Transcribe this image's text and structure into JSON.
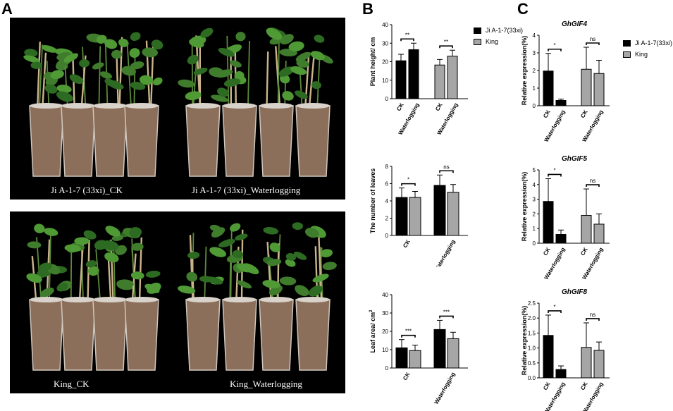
{
  "panels": {
    "a": "A",
    "b": "B",
    "c": "C"
  },
  "photos": {
    "top_left_label": "Ji A-1-7 (33xi)_CK",
    "top_right_label": "Ji A-1-7 (33xi)_Waterlogging",
    "bottom_left_label": "King_CK",
    "bottom_right_label": "King_Waterlogging"
  },
  "legend_b": [
    {
      "label": "Ji A-1-7(33xi)",
      "color": "#000000"
    },
    {
      "label": "King",
      "color": "#a6a6a6"
    }
  ],
  "legend_c": [
    {
      "label": "Ji A-1-7(33xi)",
      "color": "#000000"
    },
    {
      "label": "King",
      "color": "#a6a6a6"
    }
  ],
  "colors": {
    "ji": "#000000",
    "king": "#a6a6a6"
  },
  "chart_data": [
    {
      "id": "b1",
      "type": "bar",
      "title": "",
      "ylabel": "Plant height/ cm",
      "ylim": [
        0,
        40
      ],
      "yticks": [
        0,
        10,
        20,
        30,
        40
      ],
      "categories": [
        "CK",
        "Waterlogging",
        "CK",
        "Waterlogging"
      ],
      "groups": [
        {
          "ji": 20.5,
          "ji_err": 3.5,
          "king": 26.5,
          "king_err": 3.5,
          "sig": "**"
        },
        {
          "ji": 18.2,
          "ji_err": 3.0,
          "king": 23.0,
          "king_err": 3.2,
          "sig": "**"
        }
      ]
    },
    {
      "id": "b2",
      "type": "bar",
      "title": "",
      "ylabel": "The number of leaves",
      "ylim": [
        0,
        8
      ],
      "yticks": [
        0,
        2,
        4,
        6,
        8
      ],
      "categories": [
        "CK",
        "Waterlogging"
      ],
      "groups": [
        {
          "ji": 4.4,
          "ji_err": 1.1,
          "king": 4.4,
          "king_err": 0.7,
          "sig": "*"
        },
        {
          "ji": 5.8,
          "ji_err": 1.2,
          "king": 5.0,
          "king_err": 0.9,
          "sig": "ns"
        }
      ]
    },
    {
      "id": "b3",
      "type": "bar",
      "title": "",
      "ylabel": "Leaf area/ cm",
      "ylabel_sup": "2",
      "ylim": [
        0,
        40
      ],
      "yticks": [
        0,
        10,
        20,
        30,
        40
      ],
      "categories": [
        "CK",
        "Waterlogging"
      ],
      "groups": [
        {
          "ji": 11.0,
          "ji_err": 4.5,
          "king": 9.5,
          "king_err": 3.0,
          "sig": "***"
        },
        {
          "ji": 21.0,
          "ji_err": 5.0,
          "king": 16.0,
          "king_err": 3.5,
          "sig": "***"
        }
      ]
    },
    {
      "id": "c1",
      "type": "bar",
      "title": "GhGIF4",
      "ylabel": "Relative expression(%)",
      "ylim": [
        0,
        4
      ],
      "yticks": [
        0,
        1,
        2,
        3,
        4
      ],
      "categories": [
        "CK",
        "Waterlogging",
        "CK",
        "Waterlogging"
      ],
      "groups": [
        {
          "a": 1.97,
          "a_err": 1.0,
          "b": 0.3,
          "b_err": 0.08,
          "sig": "*"
        },
        {
          "a": 2.07,
          "a_err": 1.25,
          "b": 1.83,
          "b_err": 0.75,
          "sig": "ns"
        }
      ]
    },
    {
      "id": "c2",
      "type": "bar",
      "title": "GhGIF5",
      "ylabel": "Relative expression(%)",
      "ylim": [
        0,
        5
      ],
      "yticks": [
        0,
        1,
        2,
        3,
        4,
        5
      ],
      "categories": [
        "CK",
        "Waterlogging",
        "CK",
        "Waterlogging"
      ],
      "groups": [
        {
          "a": 2.85,
          "a_err": 1.55,
          "b": 0.6,
          "b_err": 0.3,
          "sig": "*"
        },
        {
          "a": 1.9,
          "a_err": 1.8,
          "b": 1.3,
          "b_err": 0.7,
          "sig": "ns"
        }
      ]
    },
    {
      "id": "c3",
      "type": "bar",
      "title": "GhGIF8",
      "ylabel": "Relative expression(%)",
      "ylim": [
        0,
        2.5
      ],
      "yticks": [
        0.0,
        0.5,
        1.0,
        1.5,
        2.0,
        2.5
      ],
      "categories": [
        "CK",
        "Waterlogging",
        "CK",
        "Waterlogging"
      ],
      "groups": [
        {
          "a": 1.42,
          "a_err": 0.68,
          "b": 0.28,
          "b_err": 0.12,
          "sig": "*"
        },
        {
          "a": 1.02,
          "a_err": 0.82,
          "b": 0.92,
          "b_err": 0.28,
          "sig": "ns"
        }
      ]
    }
  ]
}
